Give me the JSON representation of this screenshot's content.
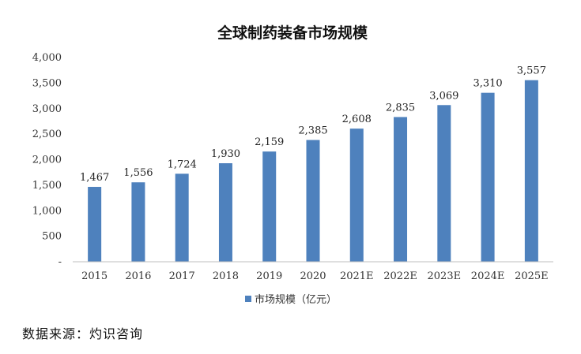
{
  "chart_data": {
    "type": "bar",
    "title": "全球制药装备市场规模",
    "categories": [
      "2015",
      "2016",
      "2017",
      "2018",
      "2019",
      "2020",
      "2021E",
      "2022E",
      "2023E",
      "2024E",
      "2025E"
    ],
    "series": [
      {
        "name": "市场规模（亿元）",
        "values": [
          1467,
          1556,
          1724,
          1930,
          2159,
          2385,
          2608,
          2835,
          3069,
          3310,
          3557
        ]
      }
    ],
    "data_labels": [
      "1,467",
      "1,556",
      "1,724",
      "1,930",
      "2,159",
      "2,385",
      "2,608",
      "2,835",
      "3,069",
      "3,310",
      "3,557"
    ],
    "y_ticks": [
      {
        "value": 4000,
        "label": "4,000"
      },
      {
        "value": 3500,
        "label": "3,500"
      },
      {
        "value": 3000,
        "label": "3,000"
      },
      {
        "value": 2500,
        "label": "2,500"
      },
      {
        "value": 2000,
        "label": "2,000"
      },
      {
        "value": 1500,
        "label": "1,500"
      },
      {
        "value": 1000,
        "label": "1,000"
      },
      {
        "value": 500,
        "label": "500"
      },
      {
        "value": 0,
        "label": "-"
      }
    ],
    "ylim": [
      0,
      4000
    ],
    "xlabel": "",
    "ylabel": "",
    "grid": false,
    "legend_position": "bottom",
    "bar_color": "#4e81bd"
  },
  "footer": {
    "source": "数据来源：灼识咨询"
  }
}
